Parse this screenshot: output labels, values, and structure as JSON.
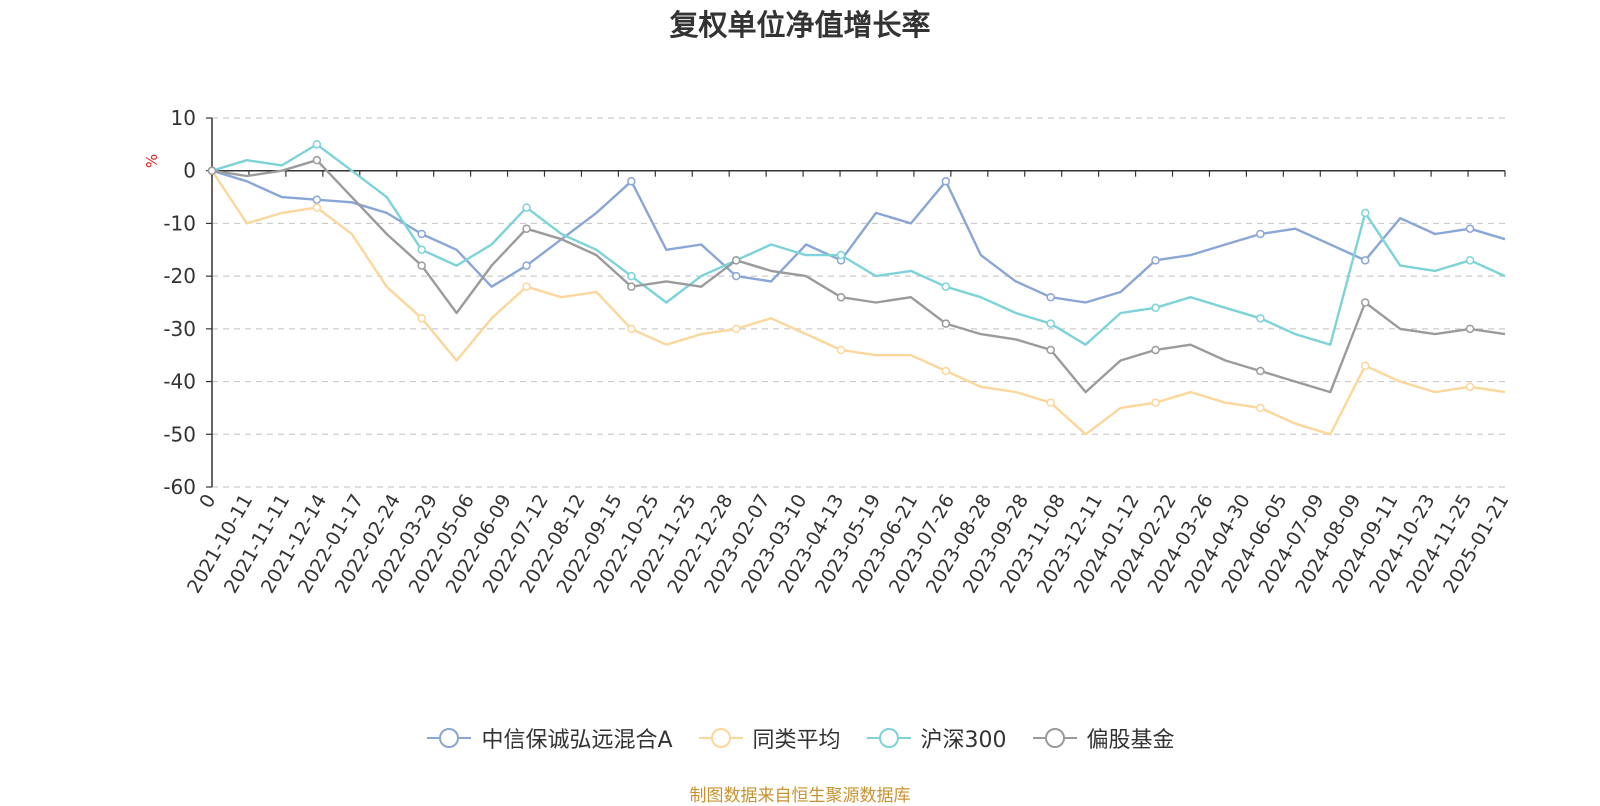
{
  "chart_data": {
    "type": "line",
    "title": "复权单位净值增长率",
    "ylabel": "%",
    "ylim": [
      -60,
      10
    ],
    "y_ticks": [
      10,
      0,
      -10,
      -20,
      -30,
      -40,
      -50,
      -60
    ],
    "x_tick_labels": [
      "0",
      "2021-10-11",
      "2021-11-11",
      "2021-12-14",
      "2022-01-17",
      "2022-02-24",
      "2022-03-29",
      "2022-05-06",
      "2022-06-09",
      "2022-07-12",
      "2022-08-12",
      "2022-09-15",
      "2022-10-25",
      "2022-11-25",
      "2022-12-28",
      "2023-02-07",
      "2023-03-10",
      "2023-04-13",
      "2023-05-19",
      "2023-06-21",
      "2023-07-26",
      "2023-08-28",
      "2023-09-28",
      "2023-11-08",
      "2023-12-11",
      "2024-01-12",
      "2024-02-22",
      "2024-03-26",
      "2024-04-30",
      "2024-06-05",
      "2024-07-09",
      "2024-08-09",
      "2024-09-11",
      "2024-10-23",
      "2024-11-25",
      "2025-01-21"
    ],
    "grid": "dashed-horizontal",
    "legend_position": "bottom",
    "series": [
      {
        "name": "中信保诚弘远混合A",
        "color": "#8aa6d6",
        "values": [
          0,
          -2,
          -5,
          -5.5,
          -6,
          -8,
          -12,
          -15,
          -22,
          -18,
          -13,
          -8,
          -2,
          -15,
          -14,
          -20,
          -21,
          -14,
          -17,
          -8,
          -10,
          -2,
          -16,
          -21,
          -24,
          -25,
          -23,
          -17,
          -16,
          -14,
          -12,
          -11,
          -14,
          -17,
          -9,
          -12,
          -11,
          -13
        ]
      },
      {
        "name": "同类平均",
        "color": "#fcd79c",
        "values": [
          0,
          -10,
          -8,
          -7,
          -12,
          -22,
          -28,
          -36,
          -28,
          -22,
          -24,
          -23,
          -30,
          -33,
          -31,
          -30,
          -28,
          -31,
          -34,
          -35,
          -35,
          -38,
          -41,
          -42,
          -44,
          -50,
          -45,
          -44,
          -42,
          -44,
          -45,
          -48,
          -50,
          -37,
          -40,
          -42,
          -41,
          -42
        ]
      },
      {
        "name": "沪深300",
        "color": "#7dd3d8",
        "values": [
          0,
          2,
          1,
          5,
          0,
          -5,
          -15,
          -18,
          -14,
          -7,
          -12,
          -15,
          -20,
          -25,
          -20,
          -17,
          -14,
          -16,
          -16,
          -20,
          -19,
          -22,
          -24,
          -27,
          -29,
          -33,
          -27,
          -26,
          -24,
          -26,
          -28,
          -31,
          -33,
          -8,
          -18,
          -19,
          -17,
          -20
        ]
      },
      {
        "name": "偏股基金",
        "color": "#9b9b9b",
        "values": [
          0,
          -1,
          0,
          2,
          -5,
          -12,
          -18,
          -27,
          -18,
          -11,
          -13,
          -16,
          -22,
          -21,
          -22,
          -17,
          -19,
          -20,
          -24,
          -25,
          -24,
          -29,
          -31,
          -32,
          -34,
          -42,
          -36,
          -34,
          -33,
          -36,
          -38,
          -40,
          -42,
          -25,
          -30,
          -31,
          -30,
          -31
        ]
      }
    ]
  },
  "source_note": "制图数据来自恒生聚源数据库"
}
